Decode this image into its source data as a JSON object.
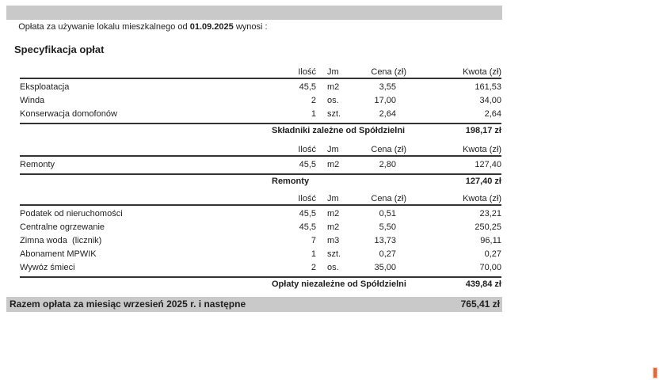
{
  "header_bar": {
    "text_prefix": "Opłata za używanie lokalu mieszkalnego od ",
    "date": "01.09.2025",
    "text_suffix": " wynosi :"
  },
  "section_title": "Specyfikacja opłat",
  "columns": {
    "ilosc": "Ilość",
    "jm": "Jm",
    "cena": "Cena (zł)",
    "kwota": "Kwota (zł)"
  },
  "tables": [
    {
      "rows": [
        {
          "name": "Eksploatacja",
          "ilosc": "45,5",
          "jm": "m2",
          "cena": "3,55",
          "kwota": "161,53"
        },
        {
          "name": "Winda",
          "ilosc": "2",
          "jm": "os.",
          "cena": "17,00",
          "kwota": "34,00"
        },
        {
          "name": "Konserwacja domofonów",
          "ilosc": "1",
          "jm": "szt.",
          "cena": "2,64",
          "kwota": "2,64"
        }
      ],
      "summary_label": "Składniki zależne od Spółdzielni",
      "summary_value": "198,17 zł"
    },
    {
      "rows": [
        {
          "name": "Remonty",
          "ilosc": "45,5",
          "jm": "m2",
          "cena": "2,80",
          "kwota": "127,40"
        }
      ],
      "summary_label": "Remonty",
      "summary_value": "127,40 zł"
    },
    {
      "rows": [
        {
          "name": "Podatek od nieruchomości",
          "ilosc": "45,5",
          "jm": "m2",
          "cena": "0,51",
          "kwota": "23,21"
        },
        {
          "name": "Centralne ogrzewanie",
          "ilosc": "45,5",
          "jm": "m2",
          "cena": "5,50",
          "kwota": "250,25"
        },
        {
          "name": "Zimna woda  (licznik)",
          "ilosc": "7",
          "jm": "m3",
          "cena": "13,73",
          "kwota": "96,11"
        },
        {
          "name": "Abonament MPWIK",
          "ilosc": "1",
          "jm": "szt.",
          "cena": "0,27",
          "kwota": "0,27"
        },
        {
          "name": "Wywóz śmieci",
          "ilosc": "2",
          "jm": "os.",
          "cena": "35,00",
          "kwota": "70,00"
        }
      ],
      "summary_label": "Opłaty niezależne od Spółdzielni",
      "summary_value": "439,84 zł"
    }
  ],
  "total_bar": {
    "label": "Razem opłata za miesiąc wrzesień 2025 r. i następne",
    "value": "765,41 zł"
  },
  "colors": {
    "bar_gray": "#c9c9c9",
    "marker_orange": "#e0683c"
  }
}
